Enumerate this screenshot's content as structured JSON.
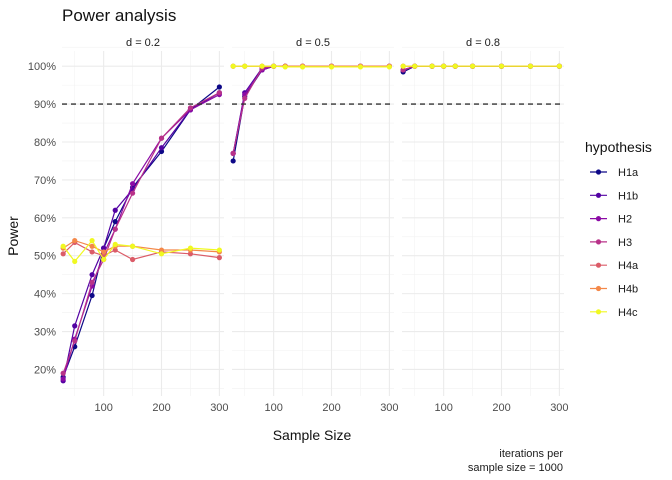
{
  "chart_data": {
    "type": "line",
    "title": "Power analysis",
    "xlabel": "Sample Size",
    "ylabel": "Power",
    "caption": [
      "iterations per",
      "sample size = 1000"
    ],
    "legend_title": "hypothesis",
    "legend_position": "right",
    "xlim": [
      28,
      308
    ],
    "ylim": [
      0.13,
      1.04
    ],
    "x_ticks": [
      100,
      200,
      300
    ],
    "x_tick_labels": [
      "100",
      "200",
      "300"
    ],
    "y_ticks": [
      0.2,
      0.3,
      0.4,
      0.5,
      0.6,
      0.7,
      0.8,
      0.9,
      1.0
    ],
    "y_tick_labels": [
      "20%",
      "30%",
      "40%",
      "50%",
      "60%",
      "70%",
      "80%",
      "90%",
      "100%"
    ],
    "reference_line": {
      "y": 0.9,
      "style": "dashed",
      "color": "#333333"
    },
    "grid": true,
    "x": [
      30,
      50,
      80,
      100,
      120,
      150,
      200,
      250,
      300
    ],
    "panels": [
      {
        "label": "d = 0.2",
        "series": [
          {
            "name": "H1a",
            "values": [
              0.18,
              0.26,
              0.395,
              0.52,
              0.59,
              0.68,
              0.775,
              0.885,
              0.945
            ],
            "color": "#0d0887"
          },
          {
            "name": "H1b",
            "values": [
              0.17,
              0.315,
              0.45,
              0.52,
              0.62,
              0.675,
              0.785,
              0.885,
              0.93
            ],
            "color": "#5302a3"
          },
          {
            "name": "H2",
            "values": [
              0.175,
              0.28,
              0.42,
              0.505,
              0.57,
              0.69,
              0.81,
              0.885,
              0.925
            ],
            "color": "#8b0aa5"
          },
          {
            "name": "H3",
            "values": [
              0.19,
              0.275,
              0.43,
              0.49,
              0.57,
              0.665,
              0.81,
              0.89,
              0.93
            ],
            "color": "#b83289"
          },
          {
            "name": "H4a",
            "values": [
              0.505,
              0.535,
              0.51,
              0.5,
              0.515,
              0.49,
              0.51,
              0.505,
              0.495
            ],
            "color": "#db5c68"
          },
          {
            "name": "H4b",
            "values": [
              0.52,
              0.54,
              0.525,
              0.51,
              0.525,
              0.525,
              0.515,
              0.515,
              0.51
            ],
            "color": "#f48849"
          },
          {
            "name": "H4c",
            "values": [
              0.525,
              0.485,
              0.54,
              0.49,
              0.53,
              0.525,
              0.505,
              0.52,
              0.515
            ],
            "color": "#f0f921"
          }
        ]
      },
      {
        "label": "d = 0.5",
        "series": [
          {
            "name": "H1a",
            "values": [
              0.75,
              0.92,
              0.99,
              1.0,
              1.0,
              1.0,
              1.0,
              1.0,
              1.0
            ],
            "color": "#0d0887"
          },
          {
            "name": "H1b",
            "values": [
              0.77,
              0.93,
              0.995,
              1.0,
              1.0,
              1.0,
              1.0,
              1.0,
              1.0
            ],
            "color": "#5302a3"
          },
          {
            "name": "H2",
            "values": [
              0.77,
              0.925,
              0.99,
              1.0,
              1.0,
              1.0,
              1.0,
              1.0,
              1.0
            ],
            "color": "#8b0aa5"
          },
          {
            "name": "H3",
            "values": [
              0.77,
              0.915,
              0.995,
              1.0,
              1.0,
              1.0,
              1.0,
              1.0,
              1.0
            ],
            "color": "#b83289"
          },
          {
            "name": "H4a",
            "values": [
              1.0,
              1.0,
              1.0,
              1.0,
              1.0,
              1.0,
              1.0,
              1.0,
              1.0
            ],
            "color": "#db5c68"
          },
          {
            "name": "H4b",
            "values": [
              1.0,
              1.0,
              1.0,
              1.0,
              1.0,
              1.0,
              1.0,
              1.0,
              1.0
            ],
            "color": "#f48849"
          },
          {
            "name": "H4c",
            "values": [
              1.0,
              1.0,
              1.0,
              1.0,
              0.998,
              0.998,
              0.998,
              0.998,
              0.998
            ],
            "color": "#f0f921"
          }
        ]
      },
      {
        "label": "d = 0.8",
        "series": [
          {
            "name": "H1a",
            "values": [
              0.985,
              1.0,
              1.0,
              1.0,
              1.0,
              1.0,
              1.0,
              1.0,
              1.0
            ],
            "color": "#0d0887"
          },
          {
            "name": "H1b",
            "values": [
              0.99,
              1.0,
              1.0,
              1.0,
              1.0,
              1.0,
              1.0,
              1.0,
              1.0
            ],
            "color": "#5302a3"
          },
          {
            "name": "H2",
            "values": [
              0.99,
              1.0,
              1.0,
              1.0,
              1.0,
              1.0,
              1.0,
              1.0,
              1.0
            ],
            "color": "#8b0aa5"
          },
          {
            "name": "H3",
            "values": [
              0.99,
              1.0,
              1.0,
              1.0,
              1.0,
              1.0,
              1.0,
              1.0,
              1.0
            ],
            "color": "#b83289"
          },
          {
            "name": "H4a",
            "values": [
              1.0,
              1.0,
              1.0,
              1.0,
              1.0,
              1.0,
              1.0,
              1.0,
              1.0
            ],
            "color": "#db5c68"
          },
          {
            "name": "H4b",
            "values": [
              1.0,
              1.0,
              1.0,
              1.0,
              1.0,
              1.0,
              1.0,
              1.0,
              1.0
            ],
            "color": "#f48849"
          },
          {
            "name": "H4c",
            "values": [
              1.0,
              1.0,
              1.0,
              1.0,
              1.0,
              1.0,
              1.0,
              1.0,
              1.0
            ],
            "color": "#f0f921"
          }
        ]
      }
    ]
  }
}
